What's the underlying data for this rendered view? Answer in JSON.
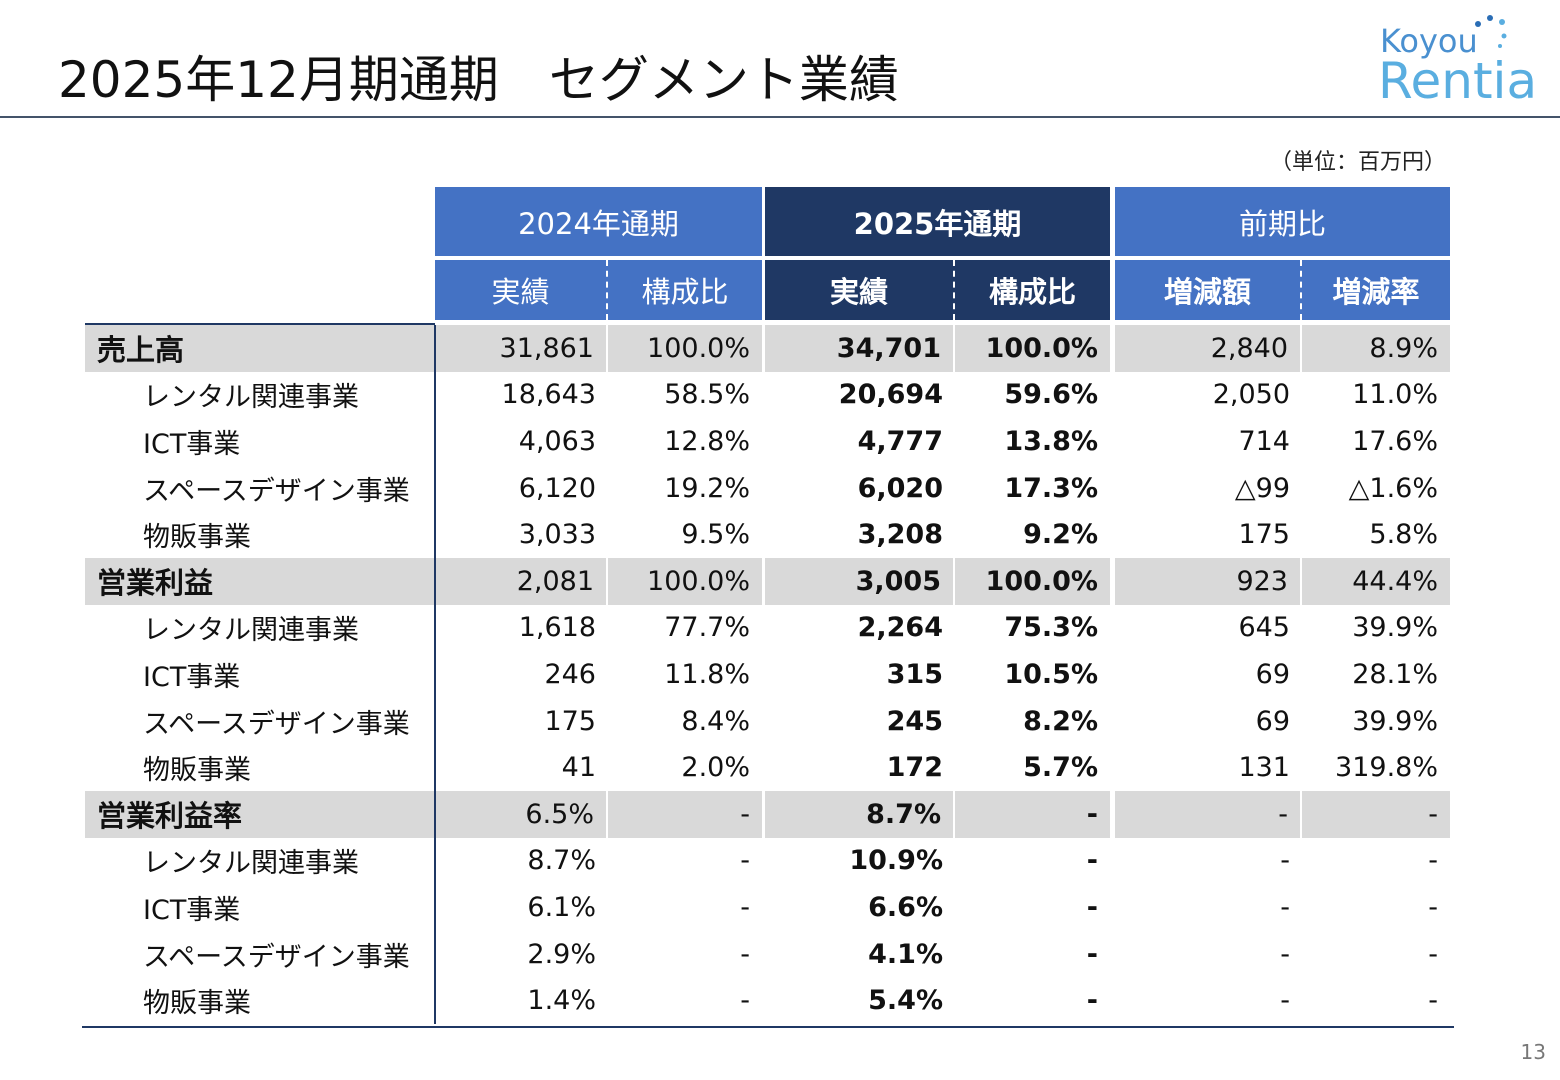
{
  "header": {
    "title": "2025年12月期通期　セグメント業績",
    "logo": {
      "line1": "Koyou",
      "line2": "Rentia"
    }
  },
  "unit": "（単位：百万円）",
  "table": {
    "groups": [
      "2024年通期",
      "2025年通期",
      "前期比"
    ],
    "subheaders": [
      "実績",
      "構成比",
      "実績",
      "構成比",
      "増減額",
      "増減率"
    ],
    "sections": [
      {
        "row": [
          "売上高",
          "31,861",
          "100.0%",
          "34,701",
          "100.0%",
          "2,840",
          "8.9%"
        ],
        "subrows": [
          [
            "レンタル関連事業",
            "18,643",
            "58.5%",
            "20,694",
            "59.6%",
            "2,050",
            "11.0%"
          ],
          [
            "ICT事業",
            "4,063",
            "12.8%",
            "4,777",
            "13.8%",
            "714",
            "17.6%"
          ],
          [
            "スペースデザイン事業",
            "6,120",
            "19.2%",
            "6,020",
            "17.3%",
            "△99",
            "△1.6%"
          ],
          [
            "物販事業",
            "3,033",
            "9.5%",
            "3,208",
            "9.2%",
            "175",
            "5.8%"
          ]
        ]
      },
      {
        "row": [
          "営業利益",
          "2,081",
          "100.0%",
          "3,005",
          "100.0%",
          "923",
          "44.4%"
        ],
        "subrows": [
          [
            "レンタル関連事業",
            "1,618",
            "77.7%",
            "2,264",
            "75.3%",
            "645",
            "39.9%"
          ],
          [
            "ICT事業",
            "246",
            "11.8%",
            "315",
            "10.5%",
            "69",
            "28.1%"
          ],
          [
            "スペースデザイン事業",
            "175",
            "8.4%",
            "245",
            "8.2%",
            "69",
            "39.9%"
          ],
          [
            "物販事業",
            "41",
            "2.0%",
            "172",
            "5.7%",
            "131",
            "319.8%"
          ]
        ]
      },
      {
        "row": [
          "営業利益率",
          "6.5%",
          "-",
          "8.7%",
          "-",
          "-",
          "-"
        ],
        "subrows": [
          [
            "レンタル関連事業",
            "8.7%",
            "-",
            "10.9%",
            "-",
            "-",
            "-"
          ],
          [
            "ICT事業",
            "6.1%",
            "-",
            "6.6%",
            "-",
            "-",
            "-"
          ],
          [
            "スペースデザイン事業",
            "2.9%",
            "-",
            "4.1%",
            "-",
            "-",
            "-"
          ],
          [
            "物販事業",
            "1.4%",
            "-",
            "5.4%",
            "-",
            "-",
            "-"
          ]
        ]
      }
    ]
  },
  "page_number": "13"
}
